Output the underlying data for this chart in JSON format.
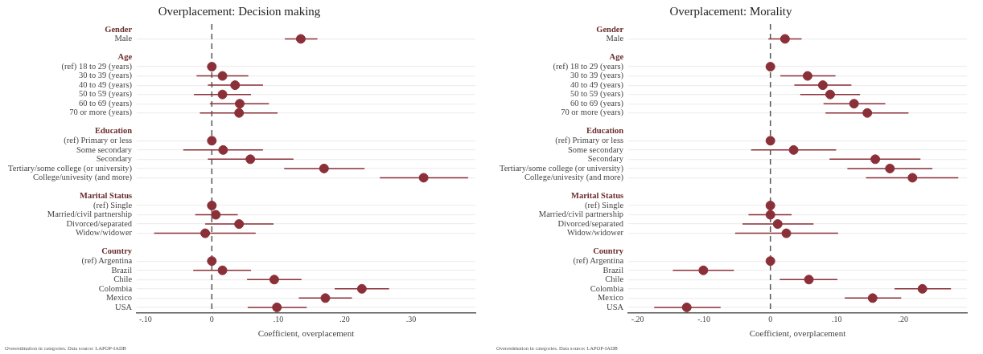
{
  "chart_data": [
    {
      "type": "scatter",
      "orientation": "horizontal",
      "title": "Overplacement: Decision making",
      "xlabel": "Coefficient, overplacement",
      "categories": [
        "Gender",
        "Male",
        null,
        "Age",
        "(ref) 18 to 29 (years)",
        "30 to 39 (years)",
        "40 to 49 (years)",
        "50 to 59 (years)",
        "60 to 69 (years)",
        "70 or more (years)",
        null,
        "Education",
        "(ref) Primary or less",
        "Some secondary",
        "Secondary",
        "Tertiary/some college (or university)",
        "College/univesity (and more)",
        null,
        "Marital Status",
        "(ref) Single",
        "Married/civil partnership",
        "Divorced/separated",
        "Widow/widower",
        null,
        "Country",
        "(ref) Argentina",
        "Brazil",
        "Chile",
        "Colombia",
        "Mexico",
        "USA"
      ],
      "series": [
        {
          "color": "#8b3038",
          "values": [
            null,
            0.134,
            null,
            null,
            0,
            0.016,
            0.035,
            0.016,
            0.042,
            0.041,
            null,
            null,
            0,
            0.017,
            0.058,
            0.169,
            0.319,
            null,
            null,
            0,
            0.006,
            0.041,
            -0.01,
            null,
            null,
            0,
            0.016,
            0.094,
            0.226,
            0.171,
            0.098
          ],
          "errors": [
            null,
            [
              0.11,
              0.159
            ],
            null,
            null,
            null,
            [
              -0.023,
              0.055
            ],
            [
              -0.006,
              0.077
            ],
            [
              -0.027,
              0.059
            ],
            [
              -0.003,
              0.086
            ],
            [
              -0.018,
              0.099
            ],
            null,
            null,
            null,
            [
              -0.043,
              0.077
            ],
            [
              -0.006,
              0.123
            ],
            [
              0.109,
              0.23
            ],
            [
              0.253,
              0.386
            ],
            null,
            null,
            null,
            [
              -0.025,
              0.039
            ],
            [
              -0.01,
              0.093
            ],
            [
              -0.087,
              0.066
            ],
            null,
            null,
            null,
            [
              -0.028,
              0.059
            ],
            [
              0.053,
              0.135
            ],
            [
              0.185,
              0.267
            ],
            [
              0.131,
              0.211
            ],
            [
              0.054,
              0.143
            ]
          ]
        }
      ],
      "xlim": [
        -0.113,
        0.397
      ],
      "xticks": [
        {
          "value": -0.1,
          "label": "-.10"
        },
        0,
        {
          "value": 0.1,
          "label": ".10"
        },
        {
          "value": 0.2,
          "label": ".20"
        },
        {
          "value": 0.3,
          "label": ".30"
        }
      ],
      "ref_lines": [
        {
          "axis": "x",
          "value": 0,
          "color": "#555555",
          "line_style": "dashed"
        }
      ],
      "grid": "y",
      "legend": false,
      "marker": "circle",
      "annotations": [
        "Overestimation in categories. Data source: LAPOP-IADB"
      ]
    },
    {
      "type": "scatter",
      "orientation": "horizontal",
      "title": "Overplacement: Morality",
      "xlabel": "Coefficient, overplacement",
      "categories": [
        "Gender",
        "Male",
        null,
        "Age",
        "(ref) 18 to 29 (years)",
        "30 to 39 (years)",
        "40 to 49 (years)",
        "50 to 59 (years)",
        "60 to 69 (years)",
        "70 or more (years)",
        null,
        "Education",
        "(ref) Primary or less",
        "Some secondary",
        "Secondary",
        "Tertiary/some college (or university)",
        "College/univesity (and more)",
        null,
        "Marital Status",
        "(ref) Single",
        "Married/civil partnership",
        "Divorced/separated",
        "Widow/widower",
        null,
        "Country",
        "(ref) Argentina",
        "Brazil",
        "Chile",
        "Colombia",
        "Mexico",
        "USA"
      ],
      "series": [
        {
          "color": "#8b3038",
          "values": [
            null,
            0.022,
            null,
            null,
            0,
            0.056,
            0.079,
            0.09,
            0.126,
            0.146,
            null,
            null,
            0,
            0.035,
            0.158,
            0.18,
            0.214,
            null,
            null,
            0,
            0,
            0.011,
            0.024,
            null,
            null,
            0,
            -0.101,
            0.058,
            0.229,
            0.154,
            -0.126
          ],
          "errors": [
            null,
            [
              -0.003,
              0.047
            ],
            null,
            null,
            null,
            [
              0.015,
              0.098
            ],
            [
              0.036,
              0.122
            ],
            [
              0.045,
              0.135
            ],
            [
              0.08,
              0.173
            ],
            [
              0.083,
              0.208
            ],
            null,
            null,
            null,
            [
              -0.029,
              0.099
            ],
            [
              0.089,
              0.226
            ],
            [
              0.116,
              0.244
            ],
            [
              0.144,
              0.283
            ],
            null,
            null,
            null,
            [
              -0.033,
              0.032
            ],
            [
              -0.042,
              0.065
            ],
            [
              -0.053,
              0.102
            ],
            null,
            null,
            null,
            [
              -0.147,
              -0.055
            ],
            [
              0.014,
              0.101
            ],
            [
              0.187,
              0.272
            ],
            [
              0.112,
              0.197
            ],
            [
              -0.175,
              -0.075
            ]
          ]
        }
      ],
      "xlim": [
        -0.214,
        0.296
      ],
      "xticks": [
        {
          "value": -0.2,
          "label": "-.20"
        },
        {
          "value": -0.1,
          "label": "-.10"
        },
        0,
        {
          "value": 0.1,
          "label": ".10"
        },
        {
          "value": 0.2,
          "label": ".20"
        }
      ],
      "ref_lines": [
        {
          "axis": "x",
          "value": 0,
          "color": "#555555",
          "line_style": "dashed"
        }
      ],
      "grid": "y",
      "legend": false,
      "marker": "circle",
      "annotations": [
        "Overestimation in categories. Data source: LAPOP-IADB"
      ]
    }
  ]
}
